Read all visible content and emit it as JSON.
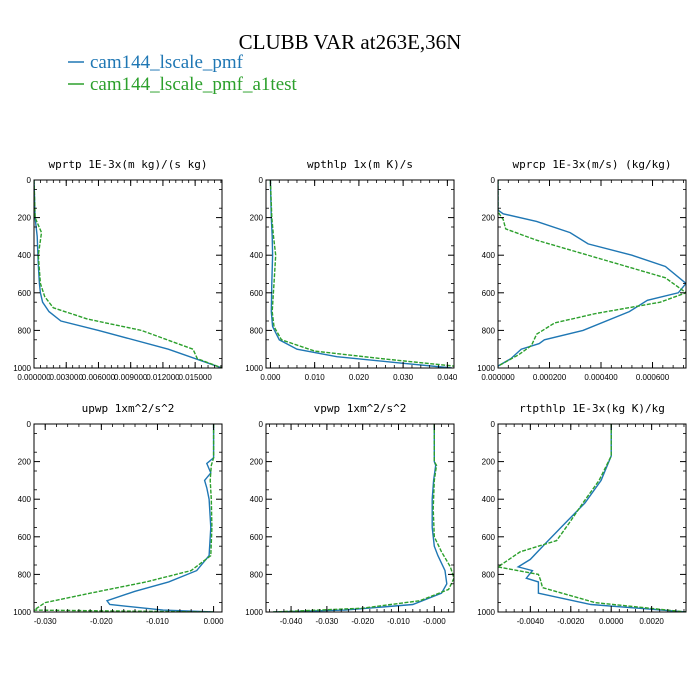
{
  "figure": {
    "title": "CLUBB VAR at263E,36N",
    "legend": [
      {
        "label": "cam144_lscale_pmf",
        "color": "#1f77b4"
      },
      {
        "label": "cam144_lscale_pmf_a1test",
        "color": "#2ca02c"
      }
    ]
  },
  "chart_data": [
    {
      "type": "line",
      "title": "wprtp  1E-3x(m kg)/(s kg)",
      "xlim": [
        0.0,
        0.0175
      ],
      "ylim": [
        1000,
        0
      ],
      "xticks": [
        0.0,
        0.003,
        0.006,
        0.009,
        0.012,
        0.015
      ],
      "xtick_labels": [
        "0.000000",
        "0.003000",
        "0.006000",
        "0.009000",
        "0.012000",
        "0.015000"
      ],
      "yticks": [
        0,
        200,
        400,
        600,
        800,
        1000
      ],
      "ytick_labels": [
        "0",
        "200",
        "400",
        "600",
        "800",
        "1000"
      ],
      "series": [
        {
          "name": "cam144_lscale_pmf",
          "color": "#1f77b4",
          "dashed": false,
          "x": [
            0.0,
            0.0001,
            0.0003,
            0.0004,
            0.0005,
            0.0006,
            0.0008,
            0.0014,
            0.0025,
            0.006,
            0.0125,
            0.0175
          ],
          "y": [
            0,
            200,
            300,
            450,
            550,
            600,
            650,
            700,
            750,
            800,
            900,
            1000
          ]
        },
        {
          "name": "cam144_lscale_pmf_a1test",
          "color": "#2ca02c",
          "dashed": true,
          "x": [
            0.0,
            0.0001,
            0.0007,
            0.0004,
            0.0006,
            0.001,
            0.0018,
            0.005,
            0.01,
            0.0148,
            0.0152,
            0.0175
          ],
          "y": [
            0,
            200,
            280,
            400,
            550,
            620,
            680,
            740,
            800,
            900,
            950,
            1000
          ]
        }
      ]
    },
    {
      "type": "line",
      "title": "wpthlp  1x(m K)/s",
      "xlim": [
        -0.001,
        0.0415
      ],
      "ylim": [
        1000,
        0
      ],
      "xticks": [
        0.0,
        0.01,
        0.02,
        0.03,
        0.04
      ],
      "xtick_labels": [
        "0.000",
        "0.010",
        "0.020",
        "0.030",
        "0.040"
      ],
      "yticks": [
        0,
        200,
        400,
        600,
        800,
        1000
      ],
      "ytick_labels": [
        "0",
        "200",
        "400",
        "600",
        "800",
        "1000"
      ],
      "series": [
        {
          "name": "cam144_lscale_pmf",
          "color": "#1f77b4",
          "dashed": false,
          "x": [
            0.0,
            0.0002,
            0.0004,
            0.0005,
            0.0003,
            0.0002,
            0.0005,
            0.002,
            0.006,
            0.015,
            0.028,
            0.041
          ],
          "y": [
            0,
            200,
            300,
            400,
            550,
            700,
            780,
            850,
            900,
            940,
            970,
            1000
          ]
        },
        {
          "name": "cam144_lscale_pmf_a1test",
          "color": "#2ca02c",
          "dashed": true,
          "x": [
            0.0,
            0.0003,
            0.0007,
            0.0012,
            0.0008,
            0.0004,
            0.0008,
            0.0025,
            0.01,
            0.025,
            0.0415
          ],
          "y": [
            0,
            200,
            300,
            400,
            550,
            700,
            780,
            850,
            910,
            950,
            990
          ]
        }
      ]
    },
    {
      "type": "line",
      "title": "wprcp  1E-3x(m/s) (kg/kg)",
      "xlim": [
        0.0,
        0.00073
      ],
      "ylim": [
        1000,
        0
      ],
      "xticks": [
        0.0,
        0.0002,
        0.0004,
        0.0006
      ],
      "xtick_labels": [
        "0.000000",
        "0.000200",
        "0.000400",
        "0.000600"
      ],
      "yticks": [
        0,
        200,
        400,
        600,
        800,
        1000
      ],
      "ytick_labels": [
        "0",
        "200",
        "400",
        "600",
        "800",
        "1000"
      ],
      "series": [
        {
          "name": "cam144_lscale_pmf",
          "color": "#1f77b4",
          "dashed": false,
          "x": [
            0.0,
            0.0,
            2e-05,
            0.00015,
            0.00028,
            0.00035,
            0.00052,
            0.00065,
            0.00073,
            0.0007,
            0.00058,
            0.00051,
            0.00033,
            0.00018,
            0.00016,
            9e-05,
            5e-05,
            0.0
          ],
          "y": [
            0,
            160,
            180,
            220,
            280,
            340,
            400,
            460,
            550,
            600,
            640,
            700,
            800,
            850,
            870,
            900,
            950,
            990
          ]
        },
        {
          "name": "cam144_lscale_pmf_a1test",
          "color": "#2ca02c",
          "dashed": true,
          "x": [
            0.0,
            0.0,
            2e-05,
            3e-05,
            0.00015,
            0.0004,
            0.00065,
            0.00073,
            0.00063,
            0.00038,
            0.00022,
            0.00015,
            0.00013,
            8e-05,
            0.0
          ],
          "y": [
            0,
            170,
            210,
            260,
            320,
            420,
            520,
            600,
            650,
            710,
            760,
            820,
            880,
            930,
            990
          ]
        }
      ]
    },
    {
      "type": "line",
      "title": "upwp  1xm^2/s^2",
      "xlim": [
        -0.032,
        0.0015
      ],
      "ylim": [
        1000,
        0
      ],
      "xticks": [
        -0.03,
        -0.02,
        -0.01,
        0.0
      ],
      "xtick_labels": [
        "-0.030",
        "-0.020",
        "-0.010",
        "0.000"
      ],
      "yticks": [
        0,
        200,
        400,
        600,
        800,
        1000
      ],
      "ytick_labels": [
        "0",
        "200",
        "400",
        "600",
        "800",
        "1000"
      ],
      "series": [
        {
          "name": "cam144_lscale_pmf",
          "color": "#1f77b4",
          "dashed": false,
          "x": [
            0.0,
            0.0,
            -0.0012,
            -0.0005,
            -0.0016,
            -0.0012,
            -0.0008,
            -0.0005,
            -0.0008,
            -0.003,
            -0.008,
            -0.014,
            -0.019,
            -0.0185,
            -0.009,
            0.0
          ],
          "y": [
            0,
            180,
            210,
            260,
            300,
            340,
            400,
            550,
            700,
            780,
            840,
            890,
            940,
            960,
            990,
            1000
          ]
        },
        {
          "name": "cam144_lscale_pmf_a1test",
          "color": "#2ca02c",
          "dashed": true,
          "x": [
            0.0,
            0.0,
            -0.0004,
            -0.0006,
            -0.0004,
            -0.0003,
            -0.0005,
            -0.004,
            -0.012,
            -0.022,
            -0.03,
            -0.032,
            0.0
          ],
          "y": [
            0,
            180,
            220,
            300,
            400,
            550,
            700,
            780,
            840,
            900,
            950,
            990,
            1000
          ]
        }
      ]
    },
    {
      "type": "line",
      "title": "vpwp  1xm^2/s^2",
      "xlim": [
        -0.047,
        0.0055
      ],
      "ylim": [
        1000,
        0
      ],
      "xticks": [
        -0.04,
        -0.03,
        -0.02,
        -0.01,
        0.0
      ],
      "xtick_labels": [
        "-0.040",
        "-0.030",
        "-0.020",
        "-0.010",
        "-0.000"
      ],
      "yticks": [
        0,
        200,
        400,
        600,
        800,
        1000
      ],
      "ytick_labels": [
        "0",
        "200",
        "400",
        "600",
        "800",
        "1000"
      ],
      "series": [
        {
          "name": "cam144_lscale_pmf",
          "color": "#1f77b4",
          "dashed": false,
          "x": [
            0.0,
            0.0,
            0.0004,
            -0.0002,
            -0.0006,
            -0.0006,
            0.0,
            0.001,
            0.003,
            0.0035,
            0.002,
            -0.006,
            -0.025,
            -0.045
          ],
          "y": [
            0,
            200,
            220,
            300,
            400,
            550,
            650,
            700,
            780,
            850,
            900,
            960,
            990,
            1000
          ]
        },
        {
          "name": "cam144_lscale_pmf_a1test",
          "color": "#2ca02c",
          "dashed": true,
          "x": [
            0.0,
            0.0,
            0.0006,
            0.0,
            -0.0003,
            0.0,
            0.002,
            0.0045,
            0.0055,
            0.004,
            -0.004,
            -0.02,
            -0.045
          ],
          "y": [
            0,
            200,
            220,
            300,
            450,
            600,
            680,
            760,
            820,
            880,
            940,
            980,
            1000
          ]
        }
      ]
    },
    {
      "type": "line",
      "title": "rtpthlp  1E-3x(kg K)/kg",
      "xlim": [
        -0.0056,
        0.0037
      ],
      "ylim": [
        1000,
        0
      ],
      "xticks": [
        -0.004,
        -0.002,
        0.0,
        0.002
      ],
      "xtick_labels": [
        "-0.0040",
        "-0.0020",
        "0.0000",
        "0.0020"
      ],
      "yticks": [
        0,
        200,
        400,
        600,
        800,
        1000
      ],
      "ytick_labels": [
        "0",
        "200",
        "400",
        "600",
        "800",
        "1000"
      ],
      "series": [
        {
          "name": "cam144_lscale_pmf",
          "color": "#1f77b4",
          "dashed": false,
          "x": [
            0.0,
            0.0,
            -0.0005,
            -0.0013,
            -0.0023,
            -0.0032,
            -0.004,
            -0.0046,
            -0.0039,
            -0.0042,
            -0.0036,
            -0.0036,
            -0.001,
            0.0037
          ],
          "y": [
            0,
            170,
            300,
            420,
            530,
            630,
            720,
            760,
            780,
            820,
            840,
            900,
            960,
            1000
          ]
        },
        {
          "name": "cam144_lscale_pmf_a1test",
          "color": "#2ca02c",
          "dashed": true,
          "x": [
            0.0,
            0.0,
            -0.0006,
            -0.0014,
            -0.0021,
            -0.0027,
            -0.0045,
            -0.0056,
            -0.0036,
            -0.0035,
            -0.0034,
            -0.0008,
            0.0037
          ],
          "y": [
            0,
            170,
            300,
            420,
            530,
            620,
            680,
            760,
            800,
            830,
            870,
            950,
            1000
          ]
        }
      ]
    }
  ]
}
